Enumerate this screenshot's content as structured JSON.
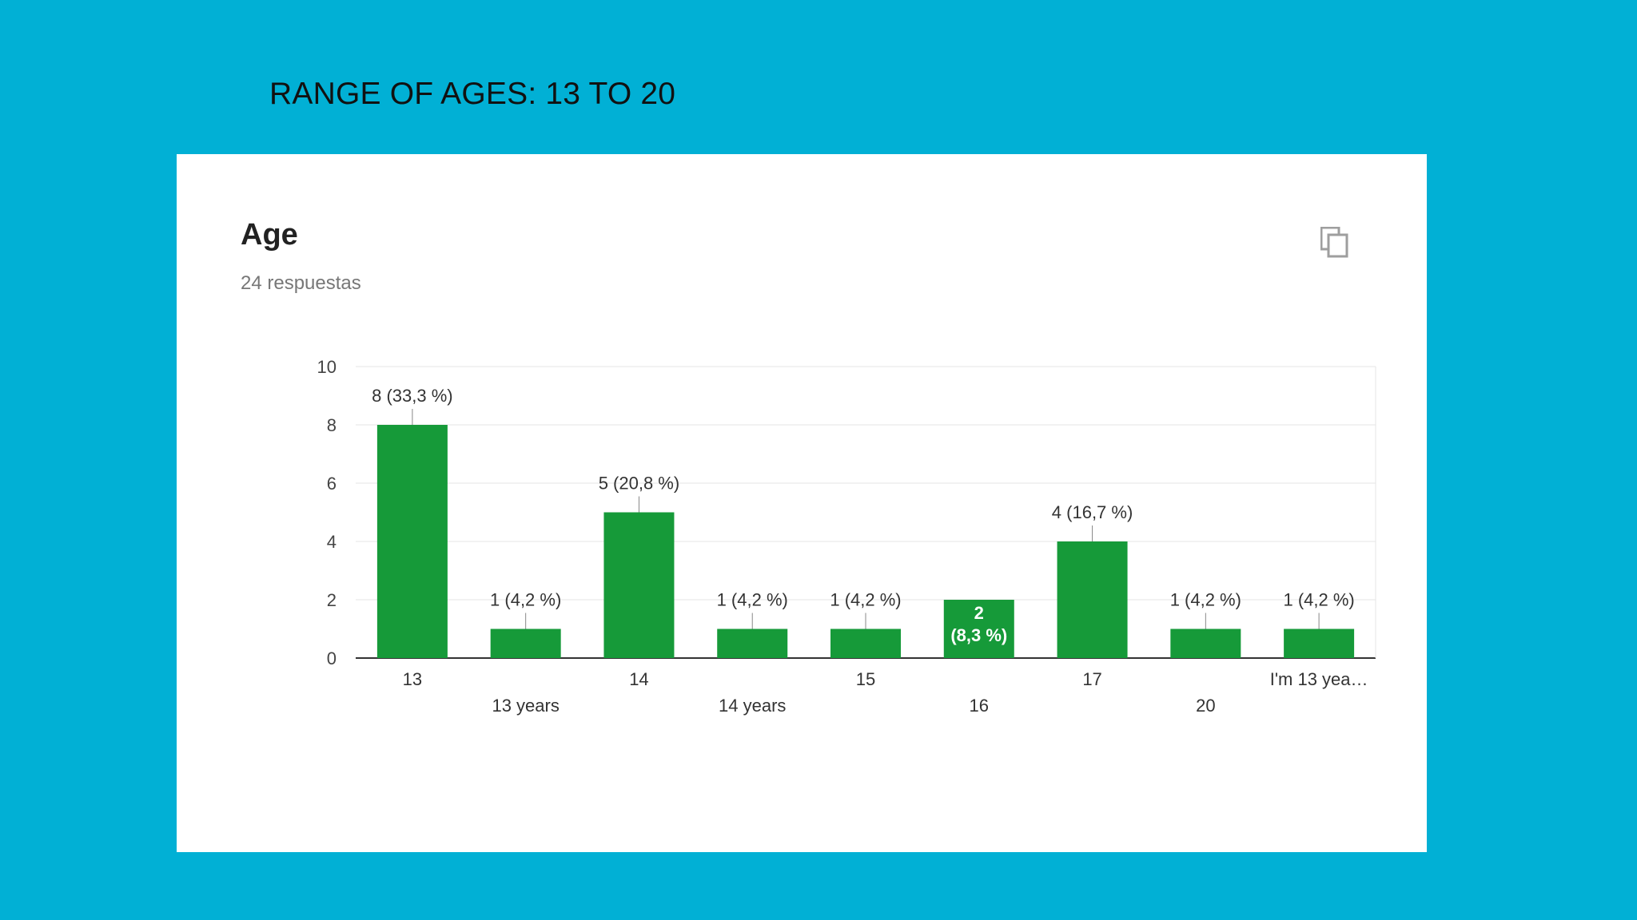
{
  "slide": {
    "title": "RANGE OF AGES: 13 TO 20"
  },
  "card": {
    "title": "Age",
    "subtitle": "24 respuestas",
    "copy_icon": "copy-icon"
  },
  "colors": {
    "background": "#01b0d5",
    "bar": "#169a39",
    "inside_label": "#ffffff"
  },
  "chart_data": {
    "type": "bar",
    "title": "Age",
    "xlabel": "",
    "ylabel": "",
    "ylim": [
      0,
      10
    ],
    "yticks": [
      "0",
      "2",
      "4",
      "6",
      "8",
      "10"
    ],
    "grid": true,
    "legend": "none",
    "categories": [
      "13",
      "13 years",
      "14",
      "14 years",
      "15",
      "16",
      "17",
      "20",
      "I'm 13 yea…"
    ],
    "values": [
      8,
      1,
      5,
      1,
      1,
      2,
      4,
      1,
      1
    ],
    "data_labels": [
      "8 (33,3 %)",
      "1 (4,2 %)",
      "5 (20,8 %)",
      "1 (4,2 %)",
      "1 (4,2 %)",
      "2 (8,3 %)",
      "4 (16,7 %)",
      "1 (4,2 %)",
      "1 (4,2 %)"
    ],
    "inside_label": {
      "index": 5,
      "lines": [
        "2",
        "(8,3 %)"
      ]
    }
  }
}
